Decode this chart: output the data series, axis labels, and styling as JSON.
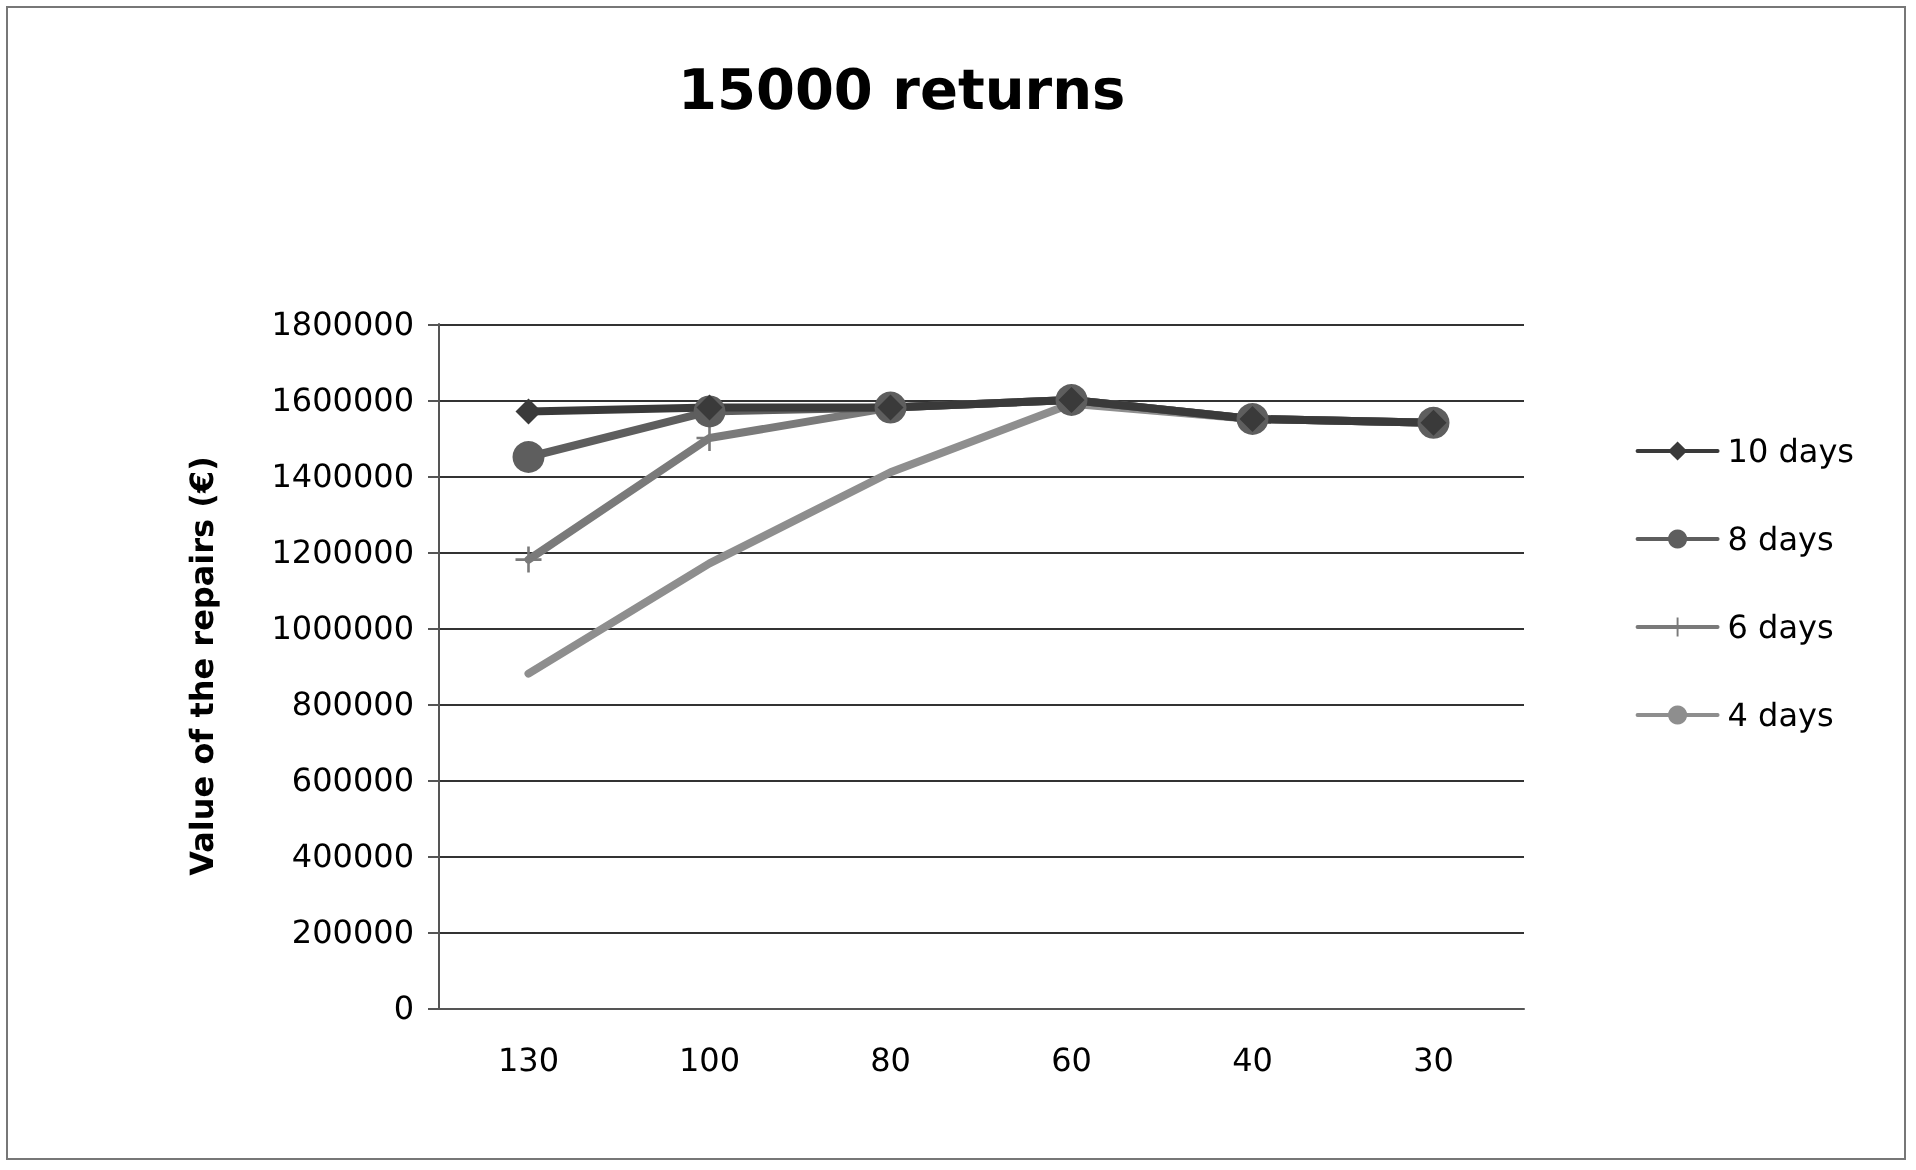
{
  "chart_data": {
    "type": "line",
    "title": "15000 returns",
    "ylabel": "Value of the repairs (€)",
    "categories": [
      "130",
      "100",
      "80",
      "60",
      "40",
      "30"
    ],
    "series": [
      {
        "name": "10 days",
        "color": "#3a3a3a",
        "marker": "diamond",
        "values": [
          1570000,
          1580000,
          1580000,
          1600000,
          1550000,
          1540000
        ]
      },
      {
        "name": "8 days",
        "color": "#5e5e5e",
        "marker": "circle",
        "values": [
          1450000,
          1570000,
          1580000,
          1600000,
          1550000,
          1540000
        ]
      },
      {
        "name": "6 days",
        "color": "#7a7a7a",
        "marker": "cross",
        "values": [
          1180000,
          1500000,
          1580000,
          1600000,
          1550000,
          1540000
        ]
      },
      {
        "name": "4 days",
        "color": "#8e8e8e",
        "marker": "none",
        "values": [
          880000,
          1170000,
          1410000,
          1590000,
          1550000,
          1540000
        ]
      }
    ],
    "ylim": [
      0,
      1800000
    ],
    "yticks": [
      0,
      200000,
      400000,
      600000,
      800000,
      1000000,
      1200000,
      1400000,
      1600000,
      1800000
    ],
    "grid": "y",
    "legend": "right"
  }
}
